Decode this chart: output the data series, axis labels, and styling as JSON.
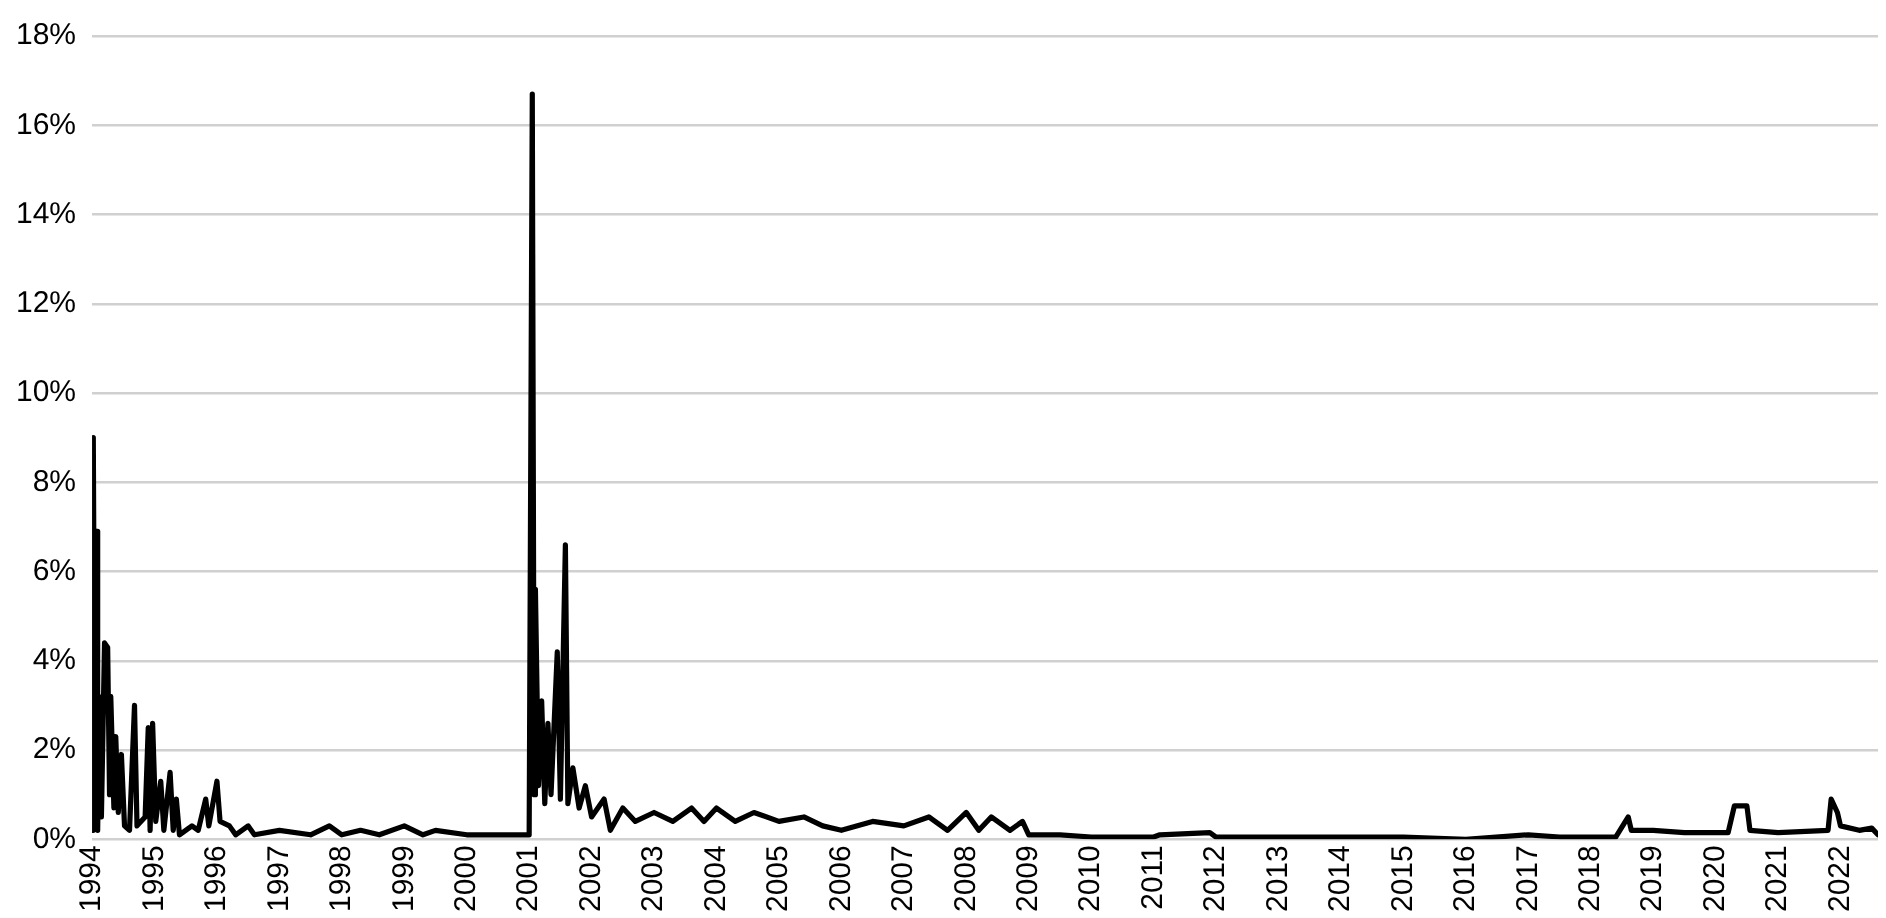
{
  "chart_data": {
    "type": "line",
    "x": [
      1994,
      1994.02,
      1994.05,
      1994.07,
      1994.09,
      1994.12,
      1994.15,
      1994.2,
      1994.25,
      1994.28,
      1994.3,
      1994.35,
      1994.38,
      1994.42,
      1994.47,
      1994.52,
      1994.6,
      1994.68,
      1994.72,
      1994.85,
      1994.9,
      1994.93,
      1994.97,
      1995.02,
      1995.1,
      1995.15,
      1995.25,
      1995.3,
      1995.35,
      1995.4,
      1995.6,
      1995.7,
      1995.82,
      1995.87,
      1996,
      1996.05,
      1996.2,
      1996.3,
      1996.5,
      1996.6,
      1997,
      1997.5,
      1997.8,
      1998,
      1998.3,
      1998.6,
      1999,
      1999.3,
      1999.5,
      2000,
      2001,
      2001.05,
      2001.08,
      2001.1,
      2001.15,
      2001.2,
      2001.25,
      2001.3,
      2001.35,
      2001.45,
      2001.5,
      2001.58,
      2001.62,
      2001.7,
      2001.8,
      2001.9,
      2002,
      2002.2,
      2002.3,
      2002.5,
      2002.7,
      2003,
      2003.3,
      2003.6,
      2003.8,
      2004,
      2004.3,
      2004.6,
      2005,
      2005.4,
      2005.7,
      2006,
      2006.5,
      2007,
      2007.4,
      2007.7,
      2008,
      2008.2,
      2008.4,
      2008.7,
      2008.9,
      2009,
      2009.5,
      2010,
      2011,
      2011.1,
      2011.9,
      2012,
      2015,
      2016,
      2017,
      2017.5,
      2018.4,
      2018.6,
      2018.65,
      2019,
      2019.5,
      2020.2,
      2020.3,
      2020.5,
      2020.55,
      2021,
      2021.8,
      2021.85,
      2021.95,
      2022,
      2022.3,
      2022.5,
      2022.6
    ],
    "series": [
      {
        "color": "#000000",
        "values": [
          0.2,
          9,
          0.3,
          6.9,
          0.2,
          3.2,
          0.5,
          4.4,
          4.3,
          1,
          3.2,
          0.7,
          2.3,
          0.6,
          1.9,
          0.3,
          0.2,
          3,
          0.3,
          0.5,
          2.5,
          0.2,
          2.6,
          0.4,
          1.3,
          0.2,
          1.5,
          0.2,
          0.9,
          0.1,
          0.3,
          0.2,
          0.9,
          0.3,
          1.3,
          0.4,
          0.3,
          0.1,
          0.3,
          0.1,
          0.2,
          0.1,
          0.3,
          0.1,
          0.2,
          0.1,
          0.3,
          0.1,
          0.2,
          0.1,
          0.1,
          16.7,
          1,
          5.6,
          1.2,
          3.1,
          0.8,
          2.6,
          1,
          4.2,
          0.9,
          6.6,
          0.8,
          1.6,
          0.7,
          1.2,
          0.5,
          0.9,
          0.2,
          0.7,
          0.4,
          0.6,
          0.4,
          0.7,
          0.4,
          0.7,
          0.4,
          0.6,
          0.4,
          0.5,
          0.3,
          0.2,
          0.4,
          0.3,
          0.5,
          0.2,
          0.6,
          0.2,
          0.5,
          0.2,
          0.4,
          0.1,
          0.1,
          0.05,
          0.05,
          0.1,
          0.15,
          0.05,
          0.05,
          0,
          0.1,
          0.05,
          0.05,
          0.5,
          0.2,
          0.2,
          0.15,
          0.15,
          0.75,
          0.75,
          0.2,
          0.15,
          0.2,
          0.9,
          0.6,
          0.3,
          0.2,
          0.25,
          0.1
        ]
      }
    ],
    "xlim": [
      1994,
      2022.6
    ],
    "xticks": [
      1994,
      1995,
      1996,
      1997,
      1998,
      1999,
      2000,
      2001,
      2002,
      2003,
      2004,
      2005,
      2006,
      2007,
      2008,
      2009,
      2010,
      2011,
      2012,
      2013,
      2014,
      2015,
      2016,
      2017,
      2018,
      2019,
      2020,
      2021,
      2022
    ],
    "ylim": [
      0,
      18
    ],
    "yticks": [
      {
        "value": 0,
        "label": "0%"
      },
      {
        "value": 2,
        "label": "2%"
      },
      {
        "value": 4,
        "label": "4%"
      },
      {
        "value": 6,
        "label": "6%"
      },
      {
        "value": 8,
        "label": "8%"
      },
      {
        "value": 10,
        "label": "10%"
      },
      {
        "value": 12,
        "label": "12%"
      },
      {
        "value": 14,
        "label": "14%"
      },
      {
        "value": 16,
        "label": "16%"
      },
      {
        "value": 18,
        "label": "18%"
      }
    ],
    "grid": "y",
    "legend": false,
    "marker": "none",
    "line_style": "solid"
  }
}
